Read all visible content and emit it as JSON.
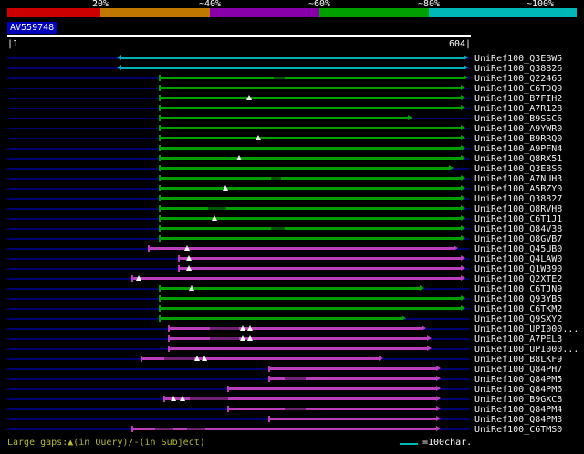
{
  "header": {
    "scale_labels": [
      "20%",
      "~40%",
      "~60%",
      "~80%",
      "~100%"
    ],
    "scale_segments": [
      {
        "range": "<20%",
        "color": "#cc0000"
      },
      {
        "range": "20-40%",
        "color": "#c07800"
      },
      {
        "range": "40-60%",
        "color": "#8800aa"
      },
      {
        "range": "60-80%",
        "color": "#00a000"
      },
      {
        "range": "80-100%",
        "color": "#00b8b8"
      }
    ],
    "query": {
      "id": "AV559748",
      "ruler_start": "|1",
      "ruler_end": "604|",
      "length": 604
    }
  },
  "footer": {
    "gaps_legend": "Large gaps:▲(in Query)/-(in Subject)",
    "unit_legend": "=100char.",
    "unit_line_color": "#00b8b8"
  },
  "colors": {
    "background": "#000000",
    "baseline": "#000070",
    "green": "#00a000",
    "green_dark": "#005800",
    "magenta": "#bb3dbb",
    "magenta_dark": "#6d2370",
    "cyan": "#00b0b0",
    "cyan_dark": "#006a6a",
    "query_highlight": "#0000bb",
    "ruler": "#ffffff",
    "gap_marker": "#ffffff",
    "footer_text": "#b8b833",
    "label_text": "#f0f0f0"
  },
  "chart_data": {
    "type": "other",
    "subtype": "sequence-alignment-overview",
    "x_axis": {
      "label": "query position (chars)",
      "min": 1,
      "max": 604
    },
    "legend_unit": "100char",
    "rows": [
      {
        "label": "UniRef100_Q3EBW5",
        "color": "cyan",
        "start": 150,
        "end": 599,
        "arrow_left": true
      },
      {
        "label": "UniRef100_Q38826",
        "color": "cyan",
        "start": 150,
        "end": 599,
        "arrow_left": true
      },
      {
        "label": "UniRef100_Q22465",
        "color": "green",
        "start": 200,
        "end": 599,
        "dark": [
          [
            350,
            364
          ]
        ]
      },
      {
        "label": "UniRef100_C6TDQ9",
        "color": "green",
        "start": 200,
        "end": 596
      },
      {
        "label": "UniRef100_B7FIH2",
        "color": "green",
        "start": 200,
        "end": 596,
        "gaps": [
          318
        ]
      },
      {
        "label": "UniRef100_A7R128",
        "color": "green",
        "start": 200,
        "end": 596
      },
      {
        "label": "UniRef100_B9SSC6",
        "color": "green",
        "start": 200,
        "end": 526
      },
      {
        "label": "UniRef100_A9YWR0",
        "color": "green",
        "start": 200,
        "end": 596
      },
      {
        "label": "UniRef100_B9RRQ0",
        "color": "green",
        "start": 200,
        "end": 596,
        "gaps": [
          330
        ]
      },
      {
        "label": "UniRef100_A9PFN4",
        "color": "green",
        "start": 200,
        "end": 596
      },
      {
        "label": "UniRef100_Q8RX51",
        "color": "green",
        "start": 200,
        "end": 596,
        "gaps": [
          304
        ]
      },
      {
        "label": "UniRef100_Q3E8S6",
        "color": "green",
        "start": 200,
        "end": 580
      },
      {
        "label": "UniRef100_A7NUH3",
        "color": "green",
        "start": 200,
        "end": 596,
        "dark": [
          [
            346,
            360
          ]
        ]
      },
      {
        "label": "UniRef100_A5BZY0",
        "color": "green",
        "start": 200,
        "end": 596,
        "gaps": [
          286
        ]
      },
      {
        "label": "UniRef100_Q38827",
        "color": "green",
        "start": 200,
        "end": 596
      },
      {
        "label": "UniRef100_Q8RVH8",
        "color": "green",
        "start": 200,
        "end": 596,
        "dark": [
          [
            264,
            288
          ]
        ]
      },
      {
        "label": "UniRef100_C6T1J1",
        "color": "green",
        "start": 200,
        "end": 596,
        "gaps": [
          272
        ]
      },
      {
        "label": "UniRef100_Q84V38",
        "color": "green",
        "start": 200,
        "end": 596,
        "dark": [
          [
            346,
            364
          ]
        ]
      },
      {
        "label": "UniRef100_Q8GVB7",
        "color": "green",
        "start": 200,
        "end": 596
      },
      {
        "label": "UniRef100_Q45UB0",
        "color": "magenta",
        "start": 186,
        "end": 586,
        "gaps": [
          236
        ]
      },
      {
        "label": "UniRef100_Q4LAW0",
        "color": "magenta",
        "start": 225,
        "end": 596,
        "gaps": [
          238
        ]
      },
      {
        "label": "UniRef100_Q1W390",
        "color": "magenta",
        "start": 225,
        "end": 596,
        "gaps": [
          238
        ]
      },
      {
        "label": "UniRef100_Q2XTE2",
        "color": "magenta",
        "start": 164,
        "end": 596,
        "gaps": [
          172
        ]
      },
      {
        "label": "UniRef100_C6TJN9",
        "color": "green",
        "start": 200,
        "end": 542,
        "gaps": [
          242
        ]
      },
      {
        "label": "UniRef100_Q93YB5",
        "color": "green",
        "start": 200,
        "end": 596
      },
      {
        "label": "UniRef100_C6TKM2",
        "color": "green",
        "start": 200,
        "end": 596
      },
      {
        "label": "UniRef100_Q9SXY2",
        "color": "green",
        "start": 200,
        "end": 518
      },
      {
        "label": "UniRef100_UPI000...",
        "color": "magenta",
        "start": 212,
        "end": 544,
        "gaps": [
          309,
          319
        ],
        "dark": [
          [
            266,
            304
          ]
        ]
      },
      {
        "label": "UniRef100_A7PEL3",
        "color": "magenta",
        "start": 212,
        "end": 551,
        "gaps": [
          309,
          319
        ],
        "dark": [
          [
            266,
            304
          ]
        ]
      },
      {
        "label": "UniRef100_UPI000...",
        "color": "magenta",
        "start": 212,
        "end": 551
      },
      {
        "label": "UniRef100_B8LKF9",
        "color": "magenta",
        "start": 176,
        "end": 488,
        "gaps": [
          249,
          259
        ],
        "dark": [
          [
            206,
            246
          ]
        ]
      },
      {
        "label": "UniRef100_Q84PH7",
        "color": "magenta",
        "start": 344,
        "end": 563
      },
      {
        "label": "UniRef100_Q84PM5",
        "color": "magenta",
        "start": 344,
        "end": 563,
        "dark": [
          [
            364,
            392
          ]
        ]
      },
      {
        "label": "UniRef100_Q84PM6",
        "color": "magenta",
        "start": 290,
        "end": 563
      },
      {
        "label": "UniRef100_B9GXC8",
        "color": "magenta",
        "start": 206,
        "end": 563,
        "gaps": [
          218,
          230
        ],
        "dark": [
          [
            240,
            290
          ]
        ]
      },
      {
        "label": "UniRef100_Q84PM4",
        "color": "magenta",
        "start": 290,
        "end": 563,
        "dark": [
          [
            364,
            392
          ]
        ]
      },
      {
        "label": "UniRef100_Q84PM3",
        "color": "magenta",
        "start": 344,
        "end": 563
      },
      {
        "label": "UniRef100_C6TMS0",
        "color": "magenta",
        "start": 164,
        "end": 563,
        "dark": [
          [
            194,
            218
          ],
          [
            236,
            260
          ]
        ]
      }
    ]
  }
}
